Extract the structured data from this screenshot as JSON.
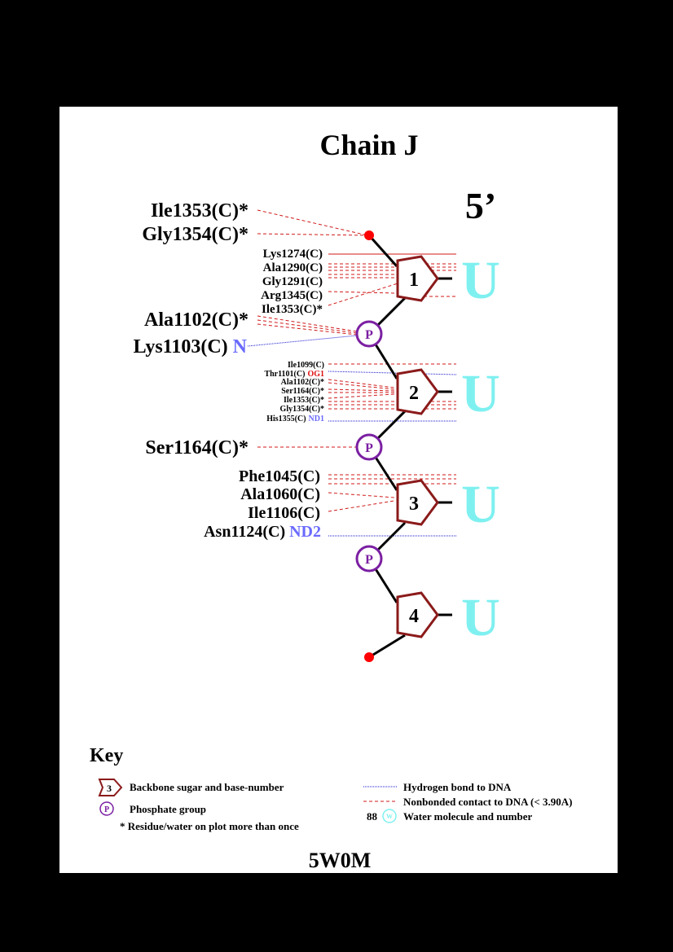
{
  "title": "Chain J",
  "five_prime_label": "5’",
  "pdb_code": "5W0M",
  "colors": {
    "sugar": "#8b1a1a",
    "phosphate": "#7b1fa2",
    "hbond": "#1a1ad0",
    "nonbonded": "#d01a1a",
    "atom_blue": "#6a6aff",
    "atom_red": "#e01010",
    "base": "#7ff0f0",
    "terminal": "#ff0000"
  },
  "nucleotides": [
    {
      "number": "1",
      "base": "U"
    },
    {
      "number": "2",
      "base": "U"
    },
    {
      "number": "3",
      "base": "U"
    },
    {
      "number": "4",
      "base": "U"
    }
  ],
  "phosphate_label": "P",
  "residues": {
    "terminal": [
      {
        "name": "Ile1353(C)*",
        "atom": ""
      },
      {
        "name": "Gly1354(C)*",
        "atom": ""
      }
    ],
    "sugar1": [
      {
        "name": "Lys1274(C)",
        "atom": ""
      },
      {
        "name": "Ala1290(C)",
        "atom": ""
      },
      {
        "name": "Gly1291(C)",
        "atom": ""
      },
      {
        "name": "Arg1345(C)",
        "atom": ""
      },
      {
        "name": "Ile1353(C)*",
        "atom": ""
      }
    ],
    "phosphate1": [
      {
        "name": "Ala1102(C)*",
        "atom": ""
      },
      {
        "name": "Lys1103(C)",
        "atom": "N"
      }
    ],
    "sugar2": [
      {
        "name": "Ile1099(C)",
        "atom": ""
      },
      {
        "name": "Thr1101(C)",
        "atom": "OG1"
      },
      {
        "name": "Ala1102(C)*",
        "atom": ""
      },
      {
        "name": "Ser1164(C)*",
        "atom": ""
      },
      {
        "name": "Ile1353(C)*",
        "atom": ""
      },
      {
        "name": "Gly1354(C)*",
        "atom": ""
      },
      {
        "name": "His1355(C)",
        "atom": "ND1"
      }
    ],
    "phosphate2": [
      {
        "name": "Ser1164(C)*",
        "atom": ""
      }
    ],
    "sugar3": [
      {
        "name": "Phe1045(C)",
        "atom": ""
      },
      {
        "name": "Ala1060(C)",
        "atom": ""
      },
      {
        "name": "Ile1106(C)",
        "atom": ""
      },
      {
        "name": "Asn1124(C)",
        "atom": "ND2"
      }
    ]
  },
  "key": {
    "title": "Key",
    "sugar_symbol_number": "3",
    "sugar_desc": "Backbone sugar and base-number",
    "phosphate_symbol": "P",
    "phosphate_desc": "Phosphate group",
    "repeat_desc": "* Residue/water on plot more than once",
    "hbond_desc": "Hydrogen bond to DNA",
    "nonbonded_desc": "Nonbonded contact to DNA (< 3.90A)",
    "water_number": "88",
    "water_symbol": "W",
    "water_desc": "Water molecule and number"
  }
}
